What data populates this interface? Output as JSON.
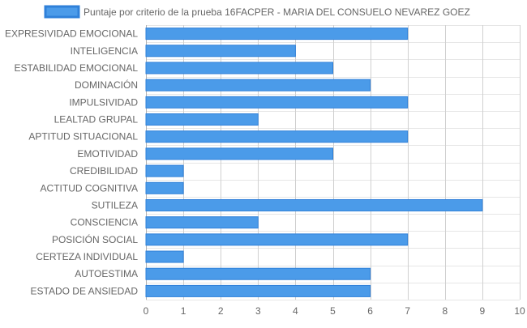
{
  "chart_data": {
    "type": "bar",
    "orientation": "horizontal",
    "categories": [
      "EXPRESIVIDAD EMOCIONAL",
      "INTELIGENCIA",
      "ESTABILIDAD EMOCIONAL",
      "DOMINACIÓN",
      "IMPULSIVIDAD",
      "LEALTAD GRUPAL",
      "APTITUD SITUACIONAL",
      "EMOTIVIDAD",
      "CREDIBILIDAD",
      "ACTITUD COGNITIVA",
      "SUTILEZA",
      "CONSCIENCIA",
      "POSICIÓN SOCIAL",
      "CERTEZA INDIVIDUAL",
      "AUTOESTIMA",
      "ESTADO DE ANSIEDAD"
    ],
    "series": [
      {
        "name": "Puntaje por criterio de la prueba 16FACPER - MARIA DEL CONSUELO NEVAREZ GOEZ",
        "values": [
          7,
          4,
          5,
          6,
          7,
          3,
          7,
          5,
          1,
          1,
          9,
          3,
          7,
          1,
          6,
          6
        ],
        "color": "#4b9be9",
        "border_color": "#2f80d9"
      }
    ],
    "xlim": [
      0,
      10
    ],
    "x_ticks": [
      "0",
      "1",
      "2",
      "3",
      "4",
      "5",
      "6",
      "7",
      "8",
      "9",
      "10"
    ],
    "xlabel": "",
    "ylabel": "",
    "grid": true,
    "legend_position": "top"
  }
}
